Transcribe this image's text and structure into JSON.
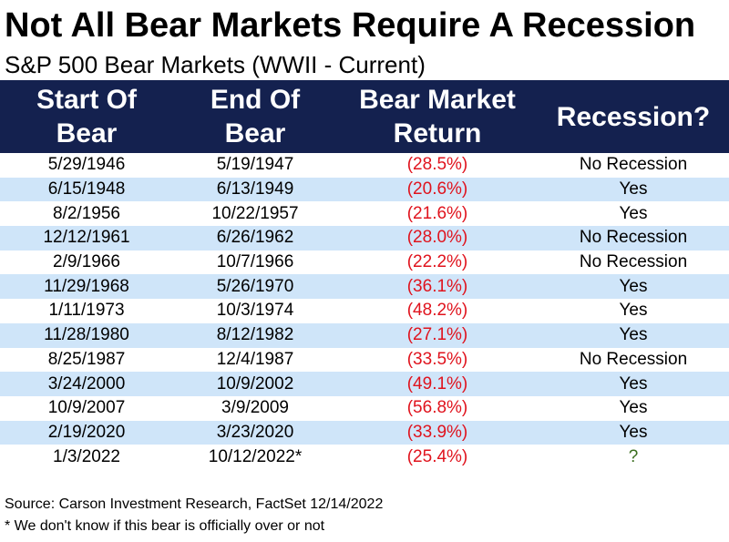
{
  "title": "Not All Bear Markets Require A Recession",
  "subtitle": "S&P 500 Bear Markets (WWII - Current)",
  "colors": {
    "header_bg": "#14214f",
    "alt_row_bg": "#cfe5f9",
    "negative_return": "#e0131d",
    "unknown_mark": "#3b6e1f"
  },
  "chart_data": {
    "type": "table",
    "columns": [
      "Start Of Bear",
      "End Of Bear",
      "Bear Market Return",
      "Recession?"
    ],
    "header_lines": [
      [
        "Start Of",
        "Bear"
      ],
      [
        "End Of",
        "Bear"
      ],
      [
        "Bear Market",
        "Return"
      ],
      [
        "Recession?"
      ]
    ],
    "rows": [
      [
        "5/29/1946",
        "5/19/1947",
        "(28.5%)",
        "No Recession"
      ],
      [
        "6/15/1948",
        "6/13/1949",
        "(20.6%)",
        "Yes"
      ],
      [
        "8/2/1956",
        "10/22/1957",
        "(21.6%)",
        "Yes"
      ],
      [
        "12/12/1961",
        "6/26/1962",
        "(28.0%)",
        "No Recession"
      ],
      [
        "2/9/1966",
        "10/7/1966",
        "(22.2%)",
        "No Recession"
      ],
      [
        "11/29/1968",
        "5/26/1970",
        "(36.1%)",
        "Yes"
      ],
      [
        "1/11/1973",
        "10/3/1974",
        "(48.2%)",
        "Yes"
      ],
      [
        "11/28/1980",
        "8/12/1982",
        "(27.1%)",
        "Yes"
      ],
      [
        "8/25/1987",
        "12/4/1987",
        "(33.5%)",
        "No Recession"
      ],
      [
        "3/24/2000",
        "10/9/2002",
        "(49.1%)",
        "Yes"
      ],
      [
        "10/9/2007",
        "3/9/2009",
        "(56.8%)",
        "Yes"
      ],
      [
        "2/19/2020",
        "3/23/2020",
        "(33.9%)",
        "Yes"
      ],
      [
        "1/3/2022",
        "10/12/2022*",
        "(25.4%)",
        "?"
      ]
    ]
  },
  "source": "Source: Carson Investment Research, FactSet 12/14/2022",
  "footnote": "* We don't know if this bear is officially over or not"
}
